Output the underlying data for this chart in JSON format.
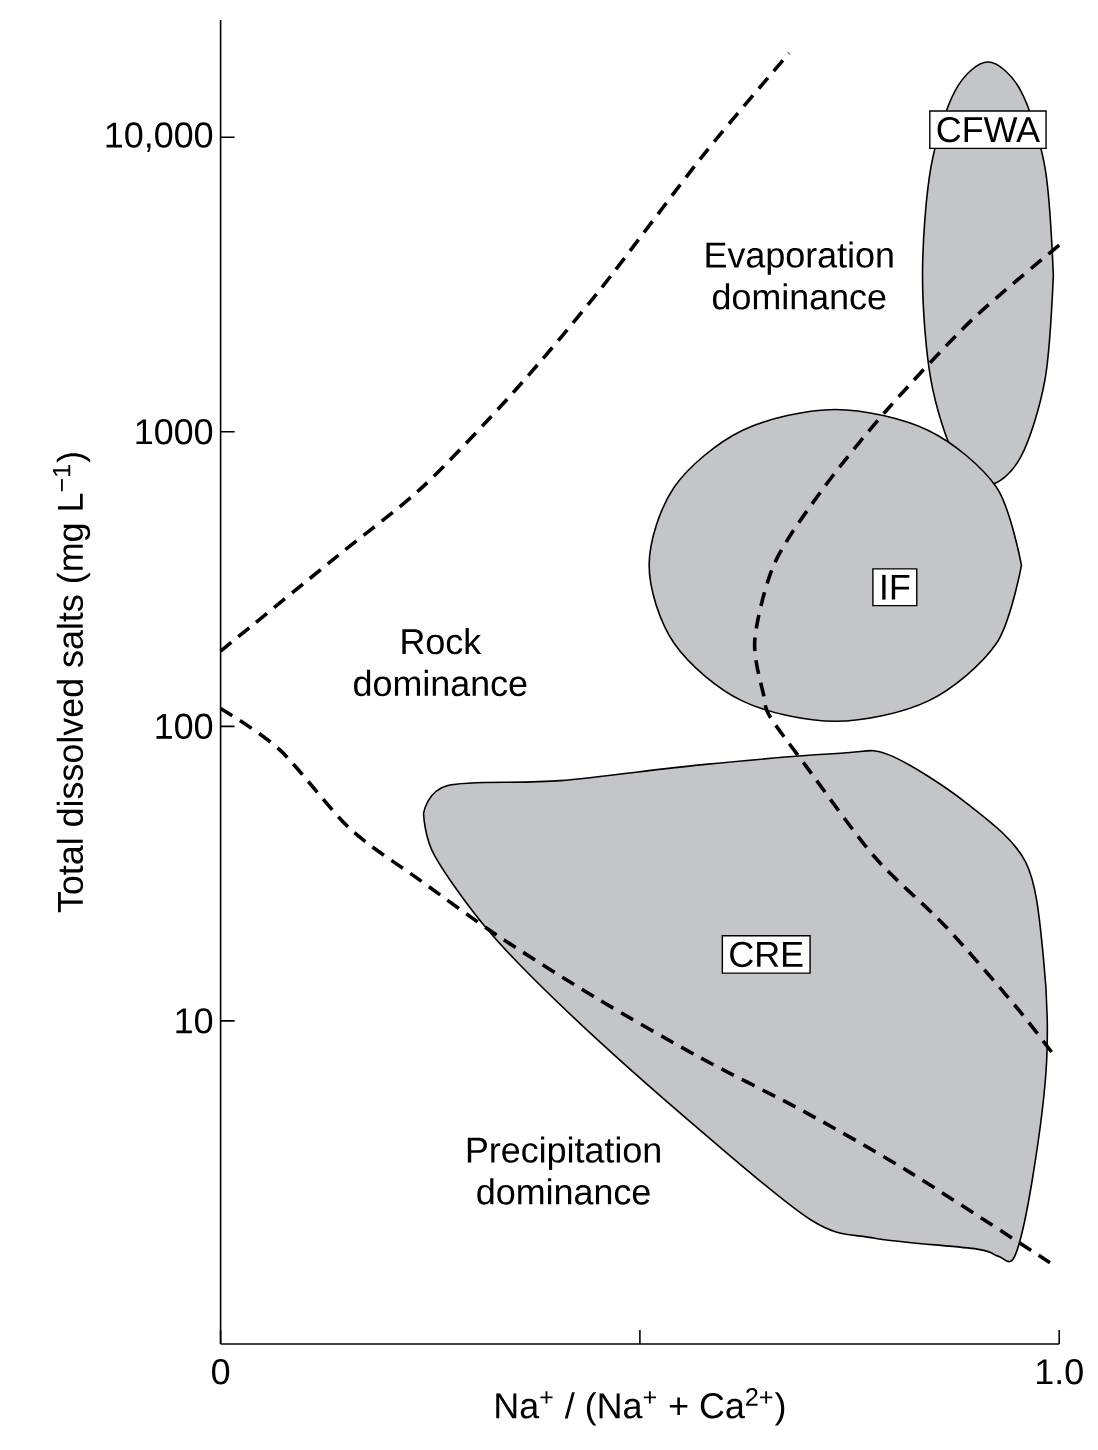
{
  "chart_data": {
    "type": "line",
    "xlabel": "Na$^{+}$ / (Na$^{+}$ + Ca$^{2+}$)",
    "ylabel": "Total dissolved salts (mg L$^{−1}$)",
    "log": "y",
    "xlim": [
      0,
      1
    ],
    "ylim": [
      0.8,
      25000
    ],
    "xticks": [
      0,
      {
        "value": 0.5,
        "label": null
      },
      {
        "value": 1,
        "label": "1.0"
      }
    ],
    "yticks": [
      10,
      100,
      1000,
      {
        "value": 10000,
        "label": "10,000"
      }
    ],
    "annotations": [
      "Evaporation dominance",
      "Rock dominance",
      "Precipitation dominance"
    ],
    "series": [
      {
        "type": "area",
        "name": "CFWA",
        "color": "#c4c5c8",
        "x": [
          0.993,
          0.983,
          0.954,
          0.915,
          0.876,
          0.847,
          0.837,
          0.847,
          0.876,
          0.915,
          0.954,
          0.983
        ],
        "values": [
          3400,
          7900,
          14400,
          18000,
          14400,
          7900,
          3400,
          1500,
          820,
          660,
          820,
          1500
        ]
      },
      {
        "type": "area",
        "name": "IF",
        "color": "#c4c5c8",
        "x": [
          0.955,
          0.925,
          0.844,
          0.733,
          0.622,
          0.541,
          0.511,
          0.541,
          0.622,
          0.733,
          0.844,
          0.925
        ],
        "values": [
          352,
          649,
          1010,
          1190,
          1010,
          649,
          352,
          191,
          122,
          104,
          122,
          191
        ]
      },
      {
        "type": "area",
        "name": "CRE",
        "color": "#c4c5c8",
        "x": [
          0.242,
          0.271,
          0.405,
          0.572,
          0.739,
          0.797,
          0.889,
          0.96,
          0.981,
          0.985,
          0.968,
          0.947,
          0.927,
          0.902,
          0.78,
          0.705,
          0.572,
          0.422,
          0.321,
          0.255
        ],
        "values": [
          50.6,
          63,
          65.4,
          74,
          81,
          80,
          55,
          34.6,
          16.6,
          7.3,
          2.9,
          1.59,
          1.59,
          1.68,
          1.83,
          2.1,
          4.25,
          10.2,
          20,
          36.5
        ]
      },
      {
        "type": "line",
        "color": "#000000",
        "line_style": "dashed",
        "x": [
          0,
          0.14,
          0.241,
          0.35,
          0.451,
          0.577,
          0.678
        ],
        "values": [
          180,
          380,
          650,
          1370,
          3000,
          8800,
          19300
        ]
      },
      {
        "type": "line",
        "color": "#000000",
        "line_style": "dashed",
        "x": [
          1.0,
          0.896,
          0.795,
          0.72,
          0.661,
          0.637,
          0.648,
          0.655,
          0.697,
          0.78,
          0.864,
          0.947,
          0.993
        ],
        "values": [
          4300,
          2400,
          1190,
          650,
          360,
          196,
          126,
          108,
          74,
          36,
          21,
          11.3,
          7.7
        ]
      },
      {
        "type": "line",
        "color": "#000000",
        "line_style": "dashed",
        "x": [
          0,
          0.071,
          0.154,
          0.238,
          0.33,
          0.447,
          0.572,
          0.697,
          0.822,
          0.989
        ],
        "values": [
          115,
          83,
          45,
          30,
          19.5,
          12,
          7.5,
          4.9,
          3.06,
          1.51
        ]
      }
    ]
  }
}
